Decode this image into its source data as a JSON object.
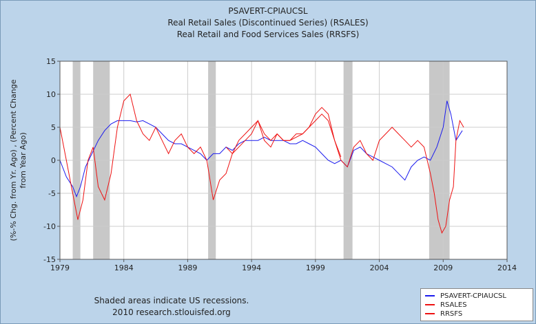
{
  "chart_data": {
    "type": "line",
    "title_lines": [
      "PSAVERT-CPIAUCSL",
      "Real Retail Sales (Discontinued Series) (RSALES)",
      "Real Retail and Food Services Sales (RRSFS)"
    ],
    "ylabel_lines": [
      "(%-% Chg. from Yr. Ago) , (Percent Change",
      "from Year Ago)"
    ],
    "xlim": [
      1979,
      2014
    ],
    "ylim": [
      -15,
      15
    ],
    "x_ticks": [
      1979,
      1984,
      1989,
      1994,
      1999,
      2004,
      2009,
      2014
    ],
    "y_ticks": [
      15,
      10,
      5,
      0,
      -5,
      -10,
      -15
    ],
    "grid": true,
    "legend_position": "bottom-right",
    "recessions": [
      [
        1980.0,
        1980.6
      ],
      [
        1981.6,
        1982.9
      ],
      [
        1990.6,
        1991.2
      ],
      [
        2001.2,
        2001.9
      ],
      [
        2007.9,
        2009.5
      ]
    ],
    "series": [
      {
        "name": "PSAVERT-CPIAUCSL",
        "color": "#1a1aee",
        "x": [
          1979.0,
          1979.5,
          1980.0,
          1980.3,
          1980.6,
          1981.0,
          1981.5,
          1982.0,
          1982.5,
          1983.0,
          1983.5,
          1984.0,
          1984.5,
          1985.0,
          1985.5,
          1986.0,
          1986.5,
          1987.0,
          1987.5,
          1988.0,
          1988.5,
          1989.0,
          1989.5,
          1990.0,
          1990.5,
          1991.0,
          1991.5,
          1992.0,
          1992.5,
          1993.0,
          1993.5,
          1994.0,
          1994.5,
          1995.0,
          1995.5,
          1996.0,
          1996.5,
          1997.0,
          1997.5,
          1998.0,
          1998.5,
          1999.0,
          1999.5,
          2000.0,
          2000.5,
          2001.0,
          2001.5,
          2002.0,
          2002.5,
          2003.0,
          2003.5,
          2004.0,
          2004.5,
          2005.0,
          2005.5,
          2006.0,
          2006.5,
          2007.0,
          2007.5,
          2008.0,
          2008.5,
          2009.0,
          2009.3,
          2009.6,
          2010.0,
          2010.5
        ],
        "y": [
          0,
          -2.5,
          -4,
          -5.5,
          -4,
          -1,
          1,
          3,
          4.5,
          5.5,
          6,
          6,
          6,
          5.8,
          6,
          5.5,
          5,
          4,
          3,
          2.5,
          2.5,
          2,
          1.5,
          1,
          0,
          1,
          1,
          2,
          1.5,
          2.5,
          3,
          3,
          3,
          3.5,
          3,
          3,
          3,
          2.5,
          2.5,
          3,
          2.5,
          2,
          1,
          0,
          -0.5,
          0,
          -1,
          1.5,
          2,
          1,
          0.5,
          0,
          -0.5,
          -1,
          -2,
          -3,
          -1,
          0,
          0.5,
          0,
          2,
          5,
          9,
          7,
          3,
          4.5
        ]
      },
      {
        "name": "RSALES",
        "color": "#ee1111",
        "x": [
          1979.0,
          1979.5,
          1980.0,
          1980.4,
          1980.8,
          1981.2,
          1981.6,
          1982.0,
          1982.5,
          1983.0,
          1983.5,
          1984.0,
          1984.5,
          1985.0,
          1985.5,
          1986.0,
          1986.5,
          1987.0,
          1987.5,
          1988.0,
          1988.5,
          1989.0,
          1989.5,
          1990.0,
          1990.5,
          1991.0,
          1991.5,
          1992.0,
          1992.5,
          1993.0,
          1993.5,
          1994.0,
          1994.5,
          1995.0,
          1995.5,
          1996.0,
          1996.5,
          1997.0,
          1997.5,
          1998.0,
          1998.5,
          1999.0,
          1999.5,
          2000.0,
          2000.5,
          2001.0
        ],
        "y": [
          5,
          0,
          -5,
          -9,
          -6,
          0,
          2,
          -4,
          -6,
          -2,
          5,
          9,
          10,
          6,
          4,
          3,
          5,
          3,
          1,
          3,
          4,
          2,
          1,
          2,
          0,
          -6,
          -3,
          -2,
          1,
          2,
          3,
          4,
          6,
          4,
          3,
          4,
          3,
          3,
          3.5,
          4,
          5,
          6,
          7,
          6,
          3,
          0.5
        ]
      },
      {
        "name": "RRSFS",
        "color": "#ee1111",
        "x": [
          1992.0,
          1992.5,
          1993.0,
          1993.5,
          1994.0,
          1994.5,
          1995.0,
          1995.5,
          1996.0,
          1996.5,
          1997.0,
          1997.5,
          1998.0,
          1998.5,
          1999.0,
          1999.5,
          2000.0,
          2000.5,
          2001.0,
          2001.5,
          2002.0,
          2002.5,
          2003.0,
          2003.5,
          2004.0,
          2004.5,
          2005.0,
          2005.5,
          2006.0,
          2006.5,
          2007.0,
          2007.5,
          2008.0,
          2008.3,
          2008.6,
          2008.9,
          2009.2,
          2009.5,
          2009.8,
          2010.0,
          2010.3,
          2010.6
        ],
        "y": [
          2,
          1,
          3,
          4,
          5,
          6,
          3,
          2,
          4,
          3,
          3,
          4,
          4,
          5,
          7,
          8,
          7,
          3,
          0,
          -1,
          2,
          3,
          1,
          0,
          3,
          4,
          5,
          4,
          3,
          2,
          3,
          2,
          -2,
          -5,
          -9,
          -11,
          -10,
          -6,
          -4,
          3,
          6,
          5
        ]
      }
    ]
  },
  "footnote": {
    "line1": "Shaded areas indicate US recessions.",
    "line2": "2010 research.stlouisfed.org"
  },
  "legend": {
    "items": [
      {
        "label": "PSAVERT-CPIAUCSL",
        "color": "#1a1aee"
      },
      {
        "label": "RSALES",
        "color": "#ee1111"
      },
      {
        "label": "RRSFS",
        "color": "#ee1111"
      }
    ]
  },
  "colors": {
    "background": "#bcd4ea",
    "plot_background": "#ffffff",
    "grid": "#cccccc",
    "recession_shade": "#c8c8c8"
  }
}
